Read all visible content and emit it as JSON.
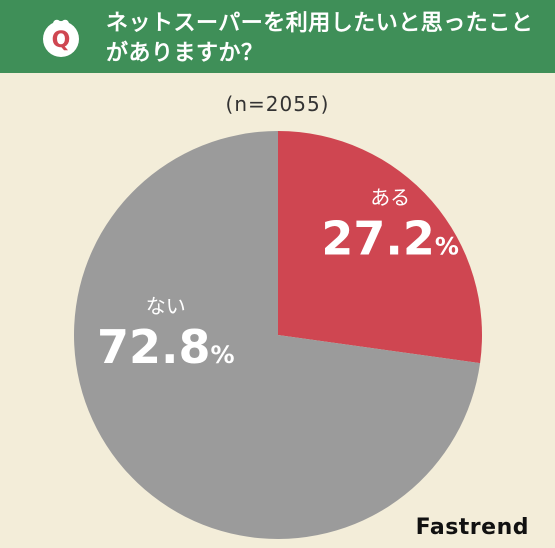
{
  "header": {
    "badge_letter": "Q",
    "question": "ネットスーパーを利用したいと思ったことがありますか？"
  },
  "sample_label": "(n=2055)",
  "brand": "Fastrend",
  "colors": {
    "header_bg": "#3f8f58",
    "page_bg": "#f3edd9",
    "yes": "#cf4651",
    "no": "#9b9b9b"
  },
  "chart_data": {
    "type": "pie",
    "title": "ネットスーパーを利用したいと思ったことがありますか？",
    "subtitle": "(n=2055)",
    "unit": "%",
    "slices": [
      {
        "label": "ある",
        "value": 27.2,
        "color": "#cf4651"
      },
      {
        "label": "ない",
        "value": 72.8,
        "color": "#9b9b9b"
      }
    ]
  }
}
